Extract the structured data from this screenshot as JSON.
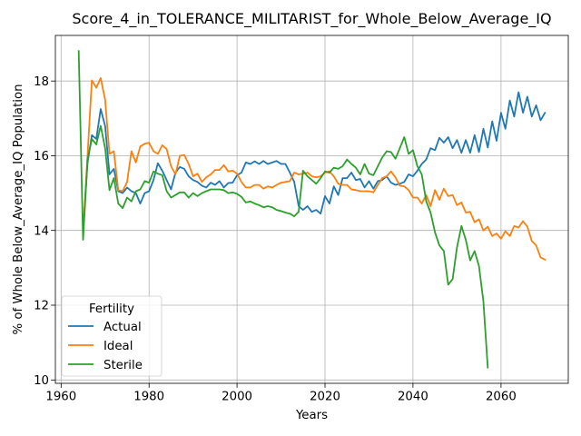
{
  "chart_data": {
    "type": "line",
    "title": "Score_4_in_TOLERANCE_MILITARIST_for_Whole_Below_Average_IQ",
    "xlabel": "Years",
    "ylabel": "% of Whole Below_Average_IQ Population",
    "xlim": [
      1958.7,
      2075.3
    ],
    "ylim": [
      9.91,
      19.22
    ],
    "xticks": [
      1960,
      1980,
      2000,
      2020,
      2040,
      2060
    ],
    "xtick_labels": [
      "1960",
      "1980",
      "2000",
      "2020",
      "2040",
      "2060"
    ],
    "yticks": [
      10,
      12,
      14,
      16,
      18
    ],
    "ytick_labels": [
      "10",
      "12",
      "14",
      "16",
      "18"
    ],
    "grid": true,
    "legend": {
      "title": "Fertility",
      "placement": "lower left"
    },
    "x": [
      1964,
      1965,
      1966,
      1967,
      1968,
      1969,
      1970,
      1971,
      1972,
      1973,
      1974,
      1975,
      1976,
      1977,
      1978,
      1979,
      1980,
      1981,
      1982,
      1983,
      1984,
      1985,
      1986,
      1987,
      1988,
      1989,
      1990,
      1991,
      1992,
      1993,
      1994,
      1995,
      1996,
      1997,
      1998,
      1999,
      2000,
      2001,
      2002,
      2003,
      2004,
      2005,
      2006,
      2007,
      2008,
      2009,
      2010,
      2011,
      2012,
      2013,
      2014,
      2015,
      2016,
      2017,
      2018,
      2019,
      2020,
      2021,
      2022,
      2023,
      2024,
      2025,
      2026,
      2027,
      2028,
      2029,
      2030,
      2031,
      2032,
      2033,
      2034,
      2035,
      2036,
      2037,
      2038,
      2039,
      2040,
      2041,
      2042,
      2043,
      2044,
      2045,
      2046,
      2047,
      2048,
      2049,
      2050,
      2051,
      2052,
      2053,
      2054,
      2055,
      2056,
      2057,
      2058,
      2059,
      2060,
      2061,
      2062,
      2063,
      2064,
      2065,
      2066,
      2067,
      2068,
      2069,
      2070
    ],
    "series": [
      {
        "name": "Actual",
        "color": "#1f77b4",
        "values": [
          null,
          13.95,
          15.8,
          16.55,
          16.45,
          17.25,
          16.8,
          15.5,
          15.65,
          15.05,
          15.0,
          15.15,
          15.05,
          15.0,
          14.72,
          15.0,
          15.05,
          15.35,
          15.8,
          15.6,
          15.35,
          15.1,
          15.55,
          15.7,
          15.65,
          15.45,
          15.35,
          15.3,
          15.2,
          15.15,
          15.28,
          15.22,
          15.32,
          15.15,
          15.27,
          15.28,
          15.48,
          15.55,
          15.82,
          15.78,
          15.85,
          15.78,
          15.86,
          15.78,
          15.82,
          15.86,
          15.78,
          15.78,
          15.55,
          15.3,
          14.65,
          14.55,
          14.65,
          14.5,
          14.55,
          14.45,
          14.92,
          14.72,
          15.18,
          14.95,
          15.4,
          15.4,
          15.55,
          15.35,
          15.38,
          15.15,
          15.32,
          15.12,
          15.32,
          15.35,
          15.45,
          15.28,
          15.22,
          15.25,
          15.3,
          15.5,
          15.45,
          15.6,
          15.78,
          15.9,
          16.2,
          16.15,
          16.48,
          16.35,
          16.5,
          16.2,
          16.42,
          16.08,
          16.42,
          16.08,
          16.55,
          16.1,
          16.72,
          16.22,
          16.92,
          16.4,
          17.15,
          16.72,
          17.48,
          17.05,
          17.7,
          17.15,
          17.58,
          17.05,
          17.35,
          16.95,
          17.15
        ]
      },
      {
        "name": "Ideal",
        "color": "#ff7f0e",
        "values": [
          null,
          13.95,
          16.0,
          18.02,
          17.82,
          18.08,
          17.5,
          16.05,
          16.12,
          15.08,
          15.05,
          15.3,
          16.12,
          15.82,
          16.25,
          16.32,
          16.35,
          16.12,
          16.05,
          16.28,
          16.18,
          15.72,
          15.5,
          16.0,
          16.02,
          15.78,
          15.45,
          15.52,
          15.3,
          15.42,
          15.5,
          15.62,
          15.62,
          15.75,
          15.58,
          15.6,
          15.52,
          15.3,
          15.15,
          15.15,
          15.22,
          15.22,
          15.12,
          15.18,
          15.15,
          15.22,
          15.28,
          15.3,
          15.32,
          15.55,
          15.5,
          15.52,
          15.55,
          15.45,
          15.42,
          15.45,
          15.55,
          15.58,
          15.45,
          15.25,
          15.22,
          15.22,
          15.1,
          15.08,
          15.05,
          15.05,
          15.05,
          15.02,
          15.22,
          15.4,
          15.45,
          15.58,
          15.42,
          15.2,
          15.18,
          15.08,
          14.88,
          14.88,
          14.72,
          14.95,
          14.65,
          15.08,
          14.82,
          15.12,
          14.92,
          14.95,
          14.68,
          14.75,
          14.48,
          14.5,
          14.22,
          14.3,
          14.0,
          14.1,
          13.85,
          13.92,
          13.78,
          13.98,
          13.85,
          14.12,
          14.08,
          14.25,
          14.1,
          13.72,
          13.6,
          13.28,
          13.22
        ]
      },
      {
        "name": "Sterile",
        "color": "#2ca02c",
        "values": [
          18.8,
          13.75,
          15.9,
          16.45,
          16.3,
          16.8,
          16.2,
          15.08,
          15.4,
          14.72,
          14.6,
          14.88,
          14.78,
          15.05,
          15.1,
          15.32,
          15.28,
          15.58,
          15.52,
          15.48,
          15.05,
          14.88,
          14.95,
          15.02,
          15.02,
          14.88,
          15.0,
          14.92,
          15.0,
          15.05,
          15.1,
          15.1,
          15.1,
          15.08,
          15.0,
          15.02,
          14.98,
          14.9,
          14.75,
          14.78,
          14.72,
          14.68,
          14.62,
          14.65,
          14.62,
          14.55,
          14.52,
          14.48,
          14.45,
          14.38,
          14.5,
          15.6,
          15.45,
          15.35,
          15.25,
          15.4,
          15.58,
          15.55,
          15.68,
          15.65,
          15.72,
          15.9,
          15.78,
          15.68,
          15.5,
          15.78,
          15.52,
          15.48,
          15.72,
          15.95,
          16.12,
          16.1,
          15.92,
          16.2,
          16.5,
          16.05,
          16.15,
          15.72,
          15.5,
          14.78,
          14.48,
          13.95,
          13.6,
          13.45,
          12.55,
          12.7,
          13.55,
          14.12,
          13.75,
          13.2,
          13.45,
          13.05,
          12.1,
          10.33,
          null,
          null,
          null,
          null,
          null,
          null,
          null,
          null,
          null,
          null,
          null,
          null,
          null
        ]
      }
    ]
  }
}
